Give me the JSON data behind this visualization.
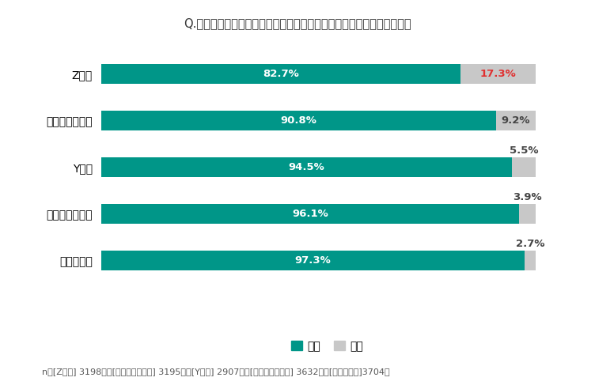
{
  "title": "Q.マスターベーションの経験についてあてはまるものをお選びください",
  "categories": [
    "Z世代",
    "ミレニアル世代",
    "Y世代",
    "ロスジェネ世代",
    "バブル世代"
  ],
  "aru_values": [
    82.7,
    90.8,
    94.5,
    96.1,
    97.3
  ],
  "nai_values": [
    17.3,
    9.2,
    5.5,
    3.9,
    2.7
  ],
  "aru_color": "#009688",
  "nai_color": "#C8C8C8",
  "title_fontsize": 10.5,
  "label_fontsize": 9.5,
  "tick_fontsize": 10,
  "legend_fontsize": 10,
  "footnote": "n＝[Z世代] 3198名、[ミレニアル世代] 3195名、[Y世代] 2907名、[ロスジェネ世代] 3632名、[バブル世代]3704名",
  "footnote_fontsize": 8.0,
  "background_color": "#FFFFFF",
  "bar_height": 0.42,
  "nai_label_above": [
    2,
    3,
    4
  ],
  "nai_red_index": 0,
  "nai_red_color": "#E03030",
  "nai_dark_color": "#444444",
  "text_white": "#FFFFFF",
  "xlim_max": 104
}
